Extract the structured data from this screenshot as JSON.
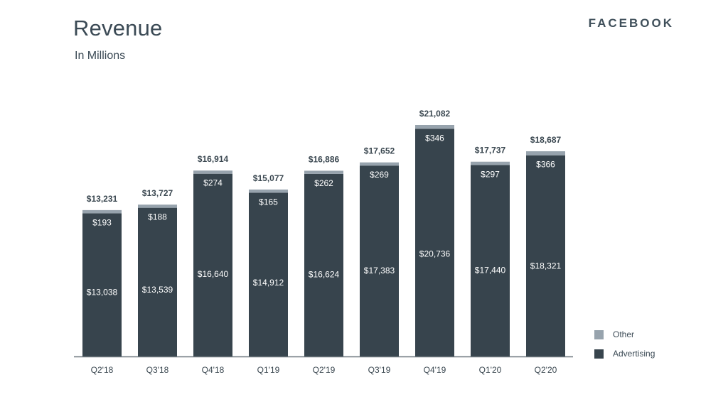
{
  "header": {
    "title": "Revenue",
    "subtitle": "In Millions",
    "brand": "FACEBOOK"
  },
  "colors": {
    "advertising": "#37444d",
    "other": "#97a3ad",
    "axis": "#6b757c",
    "text": "#3a4750",
    "inner_label": "#ffffff"
  },
  "chart_data": {
    "type": "bar",
    "stacked": true,
    "title": "Revenue",
    "subtitle": "In Millions",
    "categories": [
      "Q2'18",
      "Q3'18",
      "Q4'18",
      "Q1'19",
      "Q2'19",
      "Q3'19",
      "Q4'19",
      "Q1'20",
      "Q2'20"
    ],
    "series": [
      {
        "name": "Advertising",
        "values": [
          13038,
          13539,
          16640,
          14912,
          16624,
          17383,
          20736,
          17440,
          18321
        ],
        "labels": [
          "$13,038",
          "$13,539",
          "$16,640",
          "$14,912",
          "$16,624",
          "$17,383",
          "$20,736",
          "$17,440",
          "$18,321"
        ]
      },
      {
        "name": "Other",
        "values": [
          193,
          188,
          274,
          165,
          262,
          269,
          346,
          297,
          366
        ],
        "labels": [
          "$193",
          "$188",
          "$274",
          "$165",
          "$262",
          "$269",
          "$346",
          "$297",
          "$366"
        ]
      }
    ],
    "totals": [
      13231,
      13727,
      16914,
      15077,
      16886,
      17652,
      21082,
      17737,
      18687
    ],
    "total_labels": [
      "$13,231",
      "$13,727",
      "$16,914",
      "$15,077",
      "$16,886",
      "$17,652",
      "$21,082",
      "$17,737",
      "$18,687"
    ],
    "ylim": [
      0,
      21082
    ],
    "grid": false,
    "legend_position": "bottom-right"
  }
}
